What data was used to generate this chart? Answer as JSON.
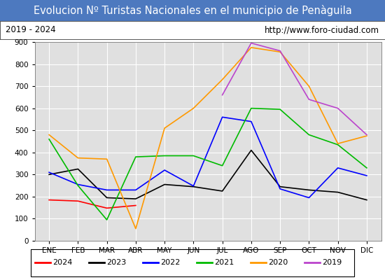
{
  "title": "Evolucion Nº Turistas Nacionales en el municipio de Penàguila",
  "subtitle_left": "2019 - 2024",
  "subtitle_right": "http://www.foro-ciudad.com",
  "xlabel_months": [
    "ENE",
    "FEB",
    "MAR",
    "ABR",
    "MAY",
    "JUN",
    "JUL",
    "AGO",
    "SEP",
    "OCT",
    "NOV",
    "DIC"
  ],
  "ylim": [
    0,
    900
  ],
  "yticks": [
    0,
    100,
    200,
    300,
    400,
    500,
    600,
    700,
    800,
    900
  ],
  "series": {
    "2024": {
      "color": "#ff0000",
      "values": [
        185,
        180,
        148,
        160,
        null,
        null,
        null,
        null,
        null,
        null,
        null,
        null
      ]
    },
    "2023": {
      "color": "#000000",
      "values": [
        300,
        325,
        195,
        190,
        255,
        245,
        225,
        410,
        245,
        230,
        220,
        185
      ]
    },
    "2022": {
      "color": "#0000ff",
      "values": [
        310,
        255,
        230,
        230,
        320,
        248,
        560,
        540,
        235,
        195,
        330,
        295
      ]
    },
    "2021": {
      "color": "#00bb00",
      "values": [
        460,
        250,
        95,
        380,
        385,
        385,
        340,
        600,
        595,
        480,
        435,
        330
      ]
    },
    "2020": {
      "color": "#ff9900",
      "values": [
        480,
        375,
        370,
        55,
        510,
        600,
        730,
        875,
        855,
        700,
        440,
        475
      ]
    },
    "2019": {
      "color": "#bb44cc",
      "values": [
        null,
        null,
        null,
        null,
        null,
        null,
        660,
        895,
        860,
        640,
        600,
        480
      ]
    }
  },
  "title_bg_color": "#4d79bf",
  "title_text_color": "#ffffff",
  "plot_bg_color": "#e0e0e0",
  "grid_color": "#ffffff",
  "fig_bg_color": "#ffffff",
  "title_fontsize": 10.5,
  "subtitle_fontsize": 8.5,
  "legend_fontsize": 8,
  "axis_fontsize": 7.5
}
